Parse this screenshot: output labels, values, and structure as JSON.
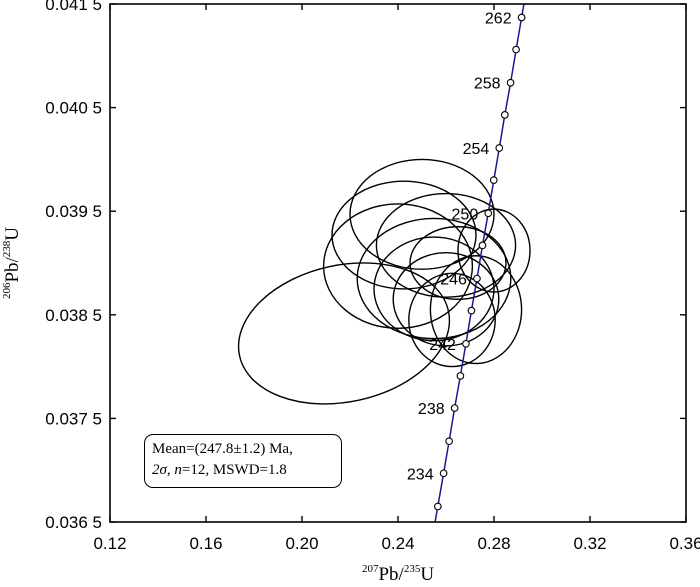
{
  "chart_data": {
    "type": "scatter",
    "subtype": "concordia",
    "xlabel": {
      "sup": "207",
      "main": "Pb/",
      "sup2": "235",
      "main2": "U"
    },
    "ylabel": {
      "sup": "206",
      "main": "Pb/",
      "sup2": "238",
      "main2": "U"
    },
    "xlim": [
      0.12,
      0.36
    ],
    "ylim": [
      0.0365,
      0.0415
    ],
    "x_ticks": [
      {
        "value": 0.12,
        "label": "0.12"
      },
      {
        "value": 0.16,
        "label": "0.16"
      },
      {
        "value": 0.2,
        "label": "0.20"
      },
      {
        "value": 0.24,
        "label": "0.24"
      },
      {
        "value": 0.28,
        "label": "0.28"
      },
      {
        "value": 0.32,
        "label": "0.32"
      },
      {
        "value": 0.36,
        "label": "0.36"
      }
    ],
    "y_ticks": [
      {
        "value": 0.0365,
        "label": "0.036 5"
      },
      {
        "value": 0.0375,
        "label": "0.037 5"
      },
      {
        "value": 0.0385,
        "label": "0.038 5"
      },
      {
        "value": 0.0395,
        "label": "0.039 5"
      },
      {
        "value": 0.0405,
        "label": "0.040 5"
      },
      {
        "value": 0.0415,
        "label": "0.041 5"
      }
    ],
    "concordia_points": [
      {
        "age": 232,
        "x": 0.2566,
        "y": 0.03665
      },
      {
        "age": 234,
        "x": 0.259,
        "y": 0.03697
      },
      {
        "age": 236,
        "x": 0.2613,
        "y": 0.03728
      },
      {
        "age": 238,
        "x": 0.2636,
        "y": 0.0376
      },
      {
        "age": 240,
        "x": 0.266,
        "y": 0.03791
      },
      {
        "age": 242,
        "x": 0.2683,
        "y": 0.03822
      },
      {
        "age": 244,
        "x": 0.2706,
        "y": 0.03854
      },
      {
        "age": 246,
        "x": 0.2729,
        "y": 0.03885
      },
      {
        "age": 248,
        "x": 0.2752,
        "y": 0.03917
      },
      {
        "age": 250,
        "x": 0.2776,
        "y": 0.03948
      },
      {
        "age": 252,
        "x": 0.2799,
        "y": 0.0398
      },
      {
        "age": 254,
        "x": 0.2822,
        "y": 0.04011
      },
      {
        "age": 256,
        "x": 0.2845,
        "y": 0.04043
      },
      {
        "age": 258,
        "x": 0.2869,
        "y": 0.04074
      },
      {
        "age": 260,
        "x": 0.2892,
        "y": 0.04106
      },
      {
        "age": 262,
        "x": 0.2915,
        "y": 0.04137
      }
    ],
    "concordia_labels": [
      {
        "text": "262",
        "age": 262,
        "side": "left"
      },
      {
        "text": "258",
        "age": 258,
        "side": "left"
      },
      {
        "text": "254",
        "age": 254,
        "side": "left"
      },
      {
        "text": "250",
        "age": 250,
        "side": "left"
      },
      {
        "text": "246",
        "age": 246,
        "side": "left"
      },
      {
        "text": "242",
        "age": 242,
        "side": "left"
      },
      {
        "text": "238",
        "age": 238,
        "side": "left"
      },
      {
        "text": "234",
        "age": 234,
        "side": "left"
      }
    ],
    "ellipses": [
      {
        "x": 0.2175,
        "y": 0.03832,
        "rx": 0.0445,
        "ry": 0.00066,
        "angle": -12
      },
      {
        "x": 0.2425,
        "y": 0.03927,
        "rx": 0.03,
        "ry": 0.00052,
        "angle": 0
      },
      {
        "x": 0.25,
        "y": 0.03947,
        "rx": 0.03,
        "ry": 0.00053,
        "angle": 0
      },
      {
        "x": 0.24,
        "y": 0.03897,
        "rx": 0.031,
        "ry": 0.0006,
        "angle": 0
      },
      {
        "x": 0.26,
        "y": 0.03917,
        "rx": 0.029,
        "ry": 0.0005,
        "angle": 0
      },
      {
        "x": 0.255,
        "y": 0.03885,
        "rx": 0.032,
        "ry": 0.00058,
        "angle": 0
      },
      {
        "x": 0.2725,
        "y": 0.03855,
        "rx": 0.019,
        "ry": 0.00052,
        "angle": 0
      },
      {
        "x": 0.26,
        "y": 0.03865,
        "rx": 0.022,
        "ry": 0.00045,
        "angle": 0
      },
      {
        "x": 0.255,
        "y": 0.03875,
        "rx": 0.025,
        "ry": 0.0005,
        "angle": 0
      },
      {
        "x": 0.28,
        "y": 0.03912,
        "rx": 0.015,
        "ry": 0.0004,
        "angle": 0
      },
      {
        "x": 0.2625,
        "y": 0.03845,
        "rx": 0.018,
        "ry": 0.00045,
        "angle": 0
      },
      {
        "x": 0.265,
        "y": 0.039,
        "rx": 0.02,
        "ry": 0.00035,
        "angle": 0
      }
    ],
    "annotation": {
      "line1": "Mean=(247.8±1.2) Ma,",
      "line2_sigma": "2σ",
      "line2_sep": ", ",
      "line2_n": "n",
      "line2_rest": "=12, MSWD=1.8"
    },
    "colors": {
      "concordia": "#1a1a8c",
      "ellipse": "#000000",
      "marker_fill": "#ffffff"
    },
    "grid": false
  }
}
